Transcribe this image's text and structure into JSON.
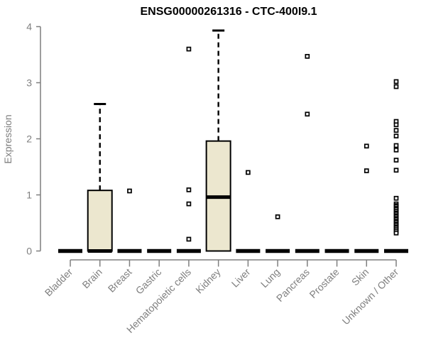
{
  "chart_data": {
    "type": "boxplot",
    "title": "ENSG00000261316 - CTC-400I9.1",
    "xlabel": "",
    "ylabel": "Expression",
    "ylim": [
      0,
      4
    ],
    "yticks": [
      0,
      1,
      2,
      3,
      4
    ],
    "grid": false,
    "legend": "none",
    "categories": [
      "Bladder",
      "Brain",
      "Breast",
      "Gastric",
      "Hematopoietic cells",
      "Kidney",
      "Liver",
      "Lung",
      "Pancreas",
      "Prostate",
      "Skin",
      "Unknown / Other"
    ],
    "boxes": [
      {
        "category": "Bladder",
        "whisker_low": 0,
        "q1": 0,
        "median": 0,
        "q3": 0,
        "whisker_high": 0,
        "outliers": []
      },
      {
        "category": "Brain",
        "whisker_low": 0,
        "q1": 0,
        "median": 0,
        "q3": 1.08,
        "whisker_high": 2.62,
        "outliers": []
      },
      {
        "category": "Breast",
        "whisker_low": 0,
        "q1": 0,
        "median": 0,
        "q3": 0,
        "whisker_high": 0,
        "outliers": [
          1.07
        ]
      },
      {
        "category": "Gastric",
        "whisker_low": 0,
        "q1": 0,
        "median": 0,
        "q3": 0,
        "whisker_high": 0,
        "outliers": []
      },
      {
        "category": "Hematopoietic cells",
        "whisker_low": 0,
        "q1": 0,
        "median": 0,
        "q3": 0,
        "whisker_high": 0,
        "outliers": [
          3.6,
          1.09,
          0.84,
          0.21
        ]
      },
      {
        "category": "Kidney",
        "whisker_low": 0,
        "q1": 0,
        "median": 0.96,
        "q3": 1.96,
        "whisker_high": 3.93,
        "outliers": []
      },
      {
        "category": "Liver",
        "whisker_low": 0,
        "q1": 0,
        "median": 0,
        "q3": 0,
        "whisker_high": 0,
        "outliers": [
          1.4
        ]
      },
      {
        "category": "Lung",
        "whisker_low": 0,
        "q1": 0,
        "median": 0,
        "q3": 0,
        "whisker_high": 0,
        "outliers": [
          0.61
        ]
      },
      {
        "category": "Pancreas",
        "whisker_low": 0,
        "q1": 0,
        "median": 0,
        "q3": 0,
        "whisker_high": 0,
        "outliers": [
          3.47,
          2.44
        ]
      },
      {
        "category": "Prostate",
        "whisker_low": 0,
        "q1": 0,
        "median": 0,
        "q3": 0,
        "whisker_high": 0,
        "outliers": []
      },
      {
        "category": "Skin",
        "whisker_low": 0,
        "q1": 0,
        "median": 0,
        "q3": 0,
        "whisker_high": 0,
        "outliers": [
          1.87,
          1.43
        ]
      },
      {
        "category": "Unknown / Other",
        "whisker_low": 0,
        "q1": 0,
        "median": 0,
        "q3": 0,
        "whisker_high": 0,
        "outliers": [
          3.02,
          2.93,
          2.31,
          2.25,
          2.15,
          2.05,
          1.88,
          1.8,
          1.62,
          1.44,
          0.94,
          0.84,
          0.81,
          0.79,
          0.76,
          0.74,
          0.71,
          0.68,
          0.66,
          0.63,
          0.61,
          0.58,
          0.56,
          0.53,
          0.51,
          0.48,
          0.46,
          0.43,
          0.41,
          0.38,
          0.35,
          0.32
        ]
      }
    ],
    "style": {
      "box_fill": "#ece7cf",
      "box_stroke": "#000000",
      "median_color": "#000000",
      "whisker_style": "dashed",
      "outlier_marker": "open-square",
      "outlier_fill": "#ffffff",
      "axis_color": "#7f7f7f",
      "label_color": "#7f7f7f",
      "title_color": "#000000",
      "background": "#ffffff"
    }
  }
}
